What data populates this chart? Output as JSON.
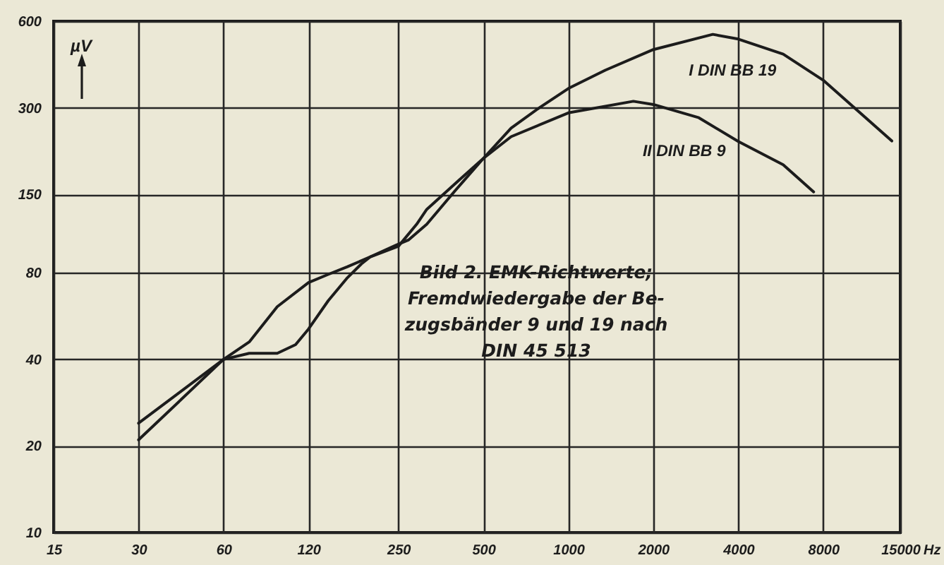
{
  "chart_data": {
    "type": "line",
    "xlabel": "Hz",
    "ylabel": "µV",
    "xlim": [
      15,
      15000
    ],
    "ylim": [
      10,
      600
    ],
    "xticks": [
      15,
      30,
      60,
      120,
      250,
      500,
      1000,
      2000,
      4000,
      8000,
      15000
    ],
    "yticks": [
      10,
      20,
      40,
      80,
      150,
      300,
      600
    ],
    "log": "xy",
    "grid": true,
    "annotations": [
      "Bild 2. EMK-Richtwerte;\nFremdwiedergabe der Be-\nzugsbänder 9 und 19 nach\nDIN 45 513"
    ],
    "series": [
      {
        "name": "I DIN BB 19",
        "color": "#1c1c1c",
        "x": [
          30,
          60,
          74,
          93,
          120,
          141,
          165,
          199,
          246,
          271,
          315,
          396,
          500,
          627,
          789,
          1000,
          1350,
          2000,
          3250,
          4000,
          5770,
          8000,
          10600,
          14000
        ],
        "values": [
          24,
          40,
          46,
          61,
          74,
          79,
          84,
          91,
          100,
          104,
          118,
          154,
          200,
          255,
          300,
          350,
          405,
          478,
          540,
          520,
          461,
          374,
          293,
          230
        ]
      },
      {
        "name": "II DIN BB 9",
        "color": "#1c1c1c",
        "x": [
          30,
          60,
          74,
          93,
          108,
          120,
          141,
          165,
          185,
          199,
          250,
          290,
          315,
          396,
          500,
          627,
          1000,
          1700,
          2000,
          2900,
          4000,
          5770,
          7400
        ],
        "values": [
          21,
          40,
          42,
          42,
          45,
          51,
          64,
          77,
          86,
          91,
          99,
          118,
          133,
          163,
          200,
          238,
          288,
          316,
          308,
          277,
          229,
          190,
          153
        ]
      }
    ]
  }
}
